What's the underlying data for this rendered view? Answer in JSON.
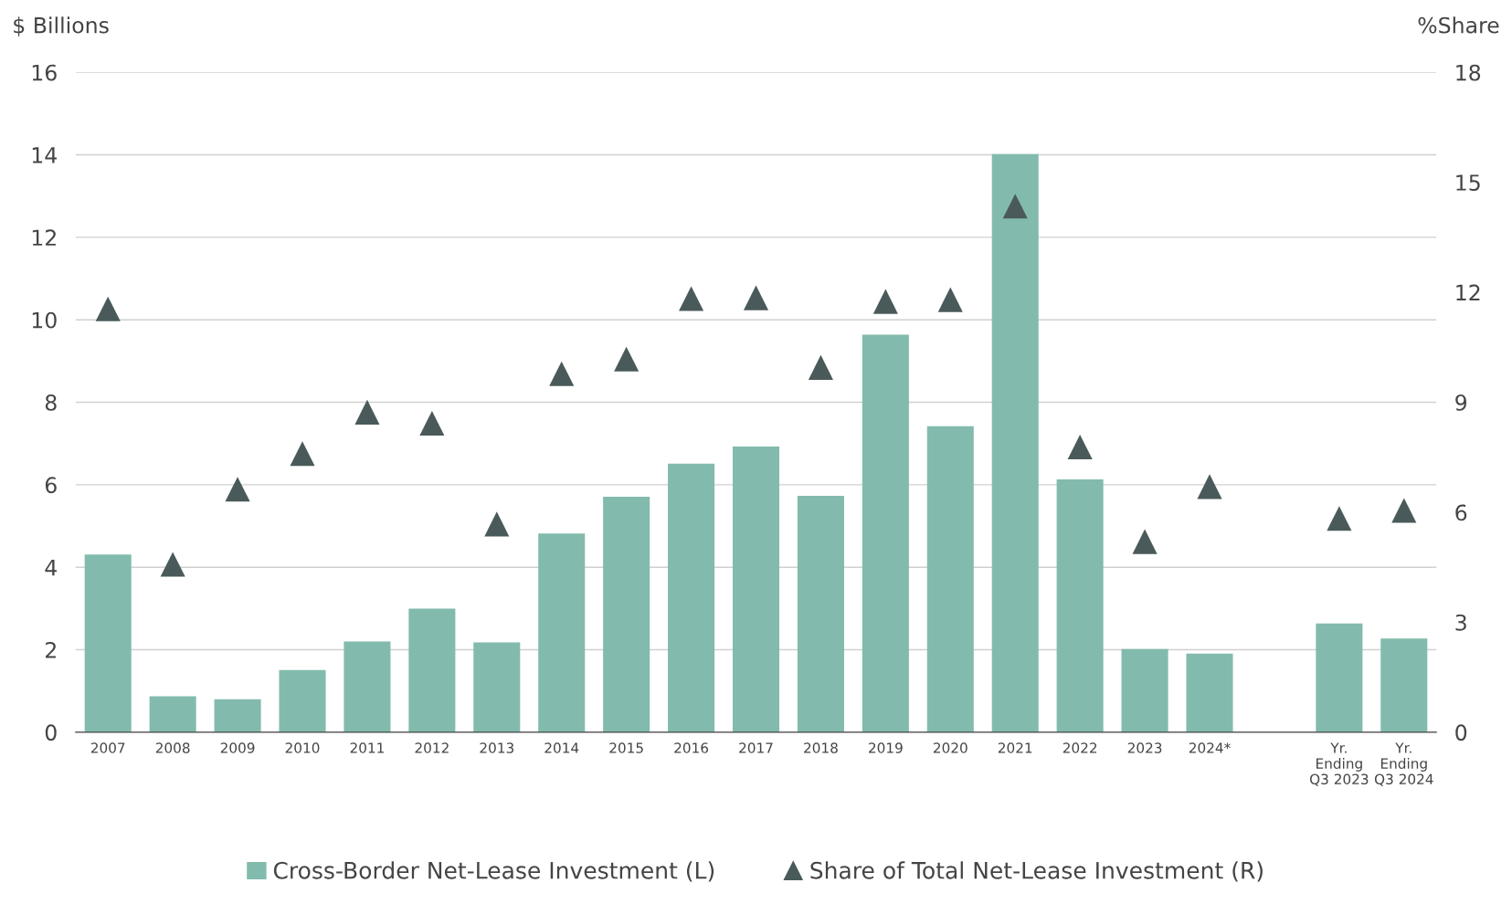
{
  "chart_data": {
    "type": "bar",
    "ylabel": "$ Billions",
    "y2label": "%Share",
    "categories": [
      "2007",
      "2008",
      "2009",
      "2010",
      "2011",
      "2012",
      "2013",
      "2014",
      "2015",
      "2016",
      "2017",
      "2018",
      "2019",
      "2020",
      "2021",
      "2022",
      "2023",
      "2024*",
      null,
      "Yr.\nEnding\nQ3 2023",
      "Yr.\nEnding\nQ3 2024"
    ],
    "series": [
      {
        "name": "Cross-Border Net-Lease Investment (L)",
        "color": "#82bbad",
        "values": [
          4.31,
          0.87,
          0.8,
          1.51,
          2.2,
          3.0,
          2.18,
          4.82,
          5.71,
          6.51,
          6.93,
          5.73,
          9.64,
          7.42,
          14.02,
          6.13,
          2.02,
          1.91,
          null,
          2.64,
          2.27
        ]
      },
      {
        "name": "Share of Total Net-Lease Investment (R)",
        "type": "scatter",
        "axis": "y2",
        "marker": "triangle",
        "color": "#4a5a5a",
        "values": [
          11.55,
          4.58,
          6.63,
          7.6,
          8.73,
          8.43,
          5.68,
          9.78,
          10.18,
          11.83,
          11.85,
          9.95,
          11.75,
          11.8,
          14.35,
          7.78,
          5.2,
          6.7,
          null,
          5.83,
          6.05
        ]
      }
    ],
    "ylim": [
      0,
      16
    ],
    "yticks": [
      0,
      2,
      4,
      6,
      8,
      10,
      12,
      14,
      16
    ],
    "y2lim": [
      0,
      18
    ],
    "y2ticks": [
      0,
      3,
      6,
      9,
      12,
      15,
      18
    ],
    "grid": "y",
    "legend": "bottom"
  }
}
